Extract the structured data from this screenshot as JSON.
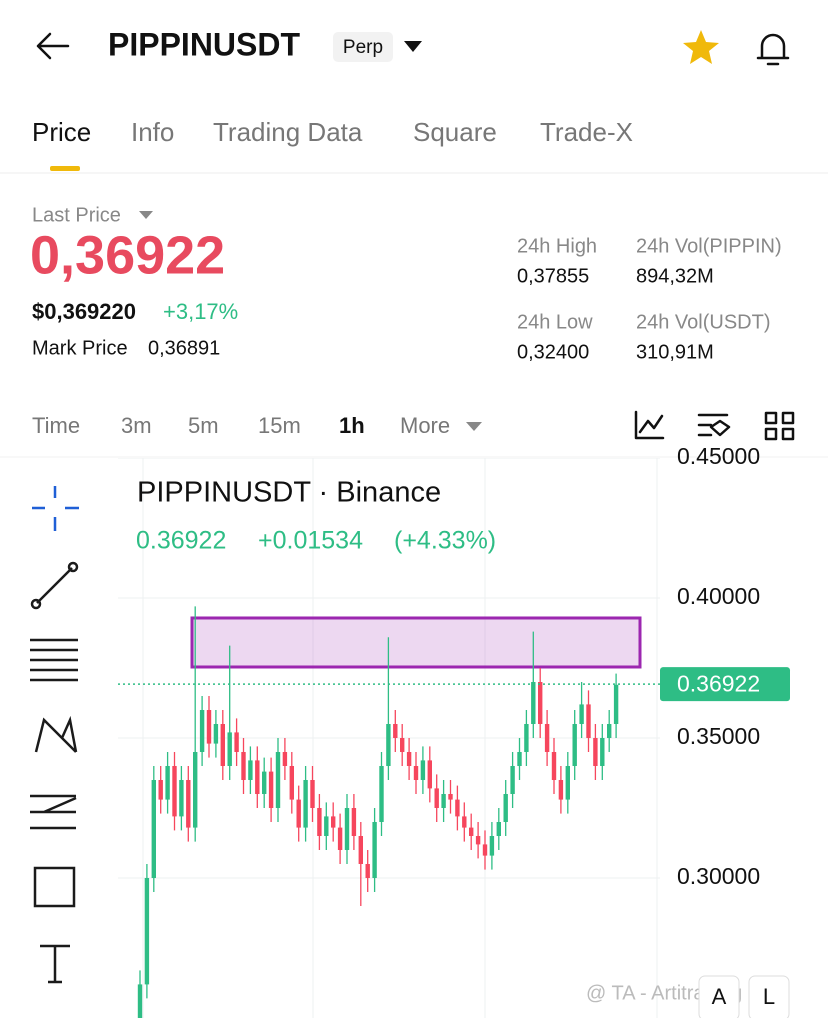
{
  "header": {
    "symbol": "PIPPINUSDT",
    "badge": "Perp"
  },
  "tabs": [
    "Price",
    "Info",
    "Trading Data",
    "Square",
    "Trade-X"
  ],
  "price": {
    "last_price_label": "Last Price",
    "last_price": "0,36922",
    "usd_price": "$0,369220",
    "change": "+3,17%",
    "mark_price_label": "Mark Price",
    "mark_price": "0,36891"
  },
  "stats": [
    {
      "label": "24h High",
      "value": "0,37855"
    },
    {
      "label": "24h Vol(PIPPIN)",
      "value": "894,32M"
    },
    {
      "label": "24h Low",
      "value": "0,32400"
    },
    {
      "label": "24h Vol(USDT)",
      "value": "310,91M"
    }
  ],
  "intervals": [
    "Time",
    "3m",
    "5m",
    "15m",
    "1h",
    "More"
  ],
  "chart_data": {
    "type": "candlestick",
    "title": "PIPPINUSDT · Binance",
    "quote": "0.36922",
    "change": "+0.01534",
    "change_pct": "(+4.33%)",
    "up_color": "#2ebd85",
    "down_color": "#f6465d",
    "zone_color": "#9c27b0",
    "open": [
      0.25,
      0.262,
      0.3,
      0.335,
      0.328,
      0.34,
      0.322,
      0.335,
      0.318,
      0.345,
      0.36,
      0.348,
      0.355,
      0.34,
      0.352,
      0.345,
      0.335,
      0.342,
      0.33,
      0.338,
      0.325,
      0.345,
      0.34,
      0.328,
      0.318,
      0.335,
      0.325,
      0.315,
      0.322,
      0.318,
      0.31,
      0.325,
      0.315,
      0.305,
      0.3,
      0.32,
      0.34,
      0.355,
      0.35,
      0.345,
      0.34,
      0.335,
      0.342,
      0.332,
      0.325,
      0.33,
      0.328,
      0.322,
      0.318,
      0.315,
      0.312,
      0.308,
      0.315,
      0.32,
      0.33,
      0.34,
      0.345,
      0.355,
      0.37,
      0.355,
      0.345,
      0.335,
      0.328,
      0.34,
      0.355,
      0.362,
      0.35,
      0.34,
      0.35,
      0.355
    ],
    "high": [
      0.267,
      0.305,
      0.34,
      0.34,
      0.345,
      0.345,
      0.34,
      0.34,
      0.397,
      0.365,
      0.365,
      0.36,
      0.36,
      0.383,
      0.357,
      0.35,
      0.347,
      0.347,
      0.343,
      0.343,
      0.35,
      0.35,
      0.345,
      0.333,
      0.34,
      0.34,
      0.33,
      0.327,
      0.327,
      0.323,
      0.33,
      0.33,
      0.32,
      0.31,
      0.325,
      0.345,
      0.386,
      0.36,
      0.355,
      0.35,
      0.345,
      0.347,
      0.347,
      0.337,
      0.335,
      0.335,
      0.333,
      0.327,
      0.323,
      0.32,
      0.317,
      0.32,
      0.325,
      0.335,
      0.345,
      0.35,
      0.36,
      0.388,
      0.375,
      0.36,
      0.35,
      0.34,
      0.345,
      0.36,
      0.37,
      0.367,
      0.355,
      0.355,
      0.36,
      0.373
    ],
    "low": [
      0.245,
      0.257,
      0.295,
      0.323,
      0.323,
      0.317,
      0.317,
      0.313,
      0.313,
      0.34,
      0.343,
      0.343,
      0.335,
      0.335,
      0.34,
      0.33,
      0.33,
      0.325,
      0.325,
      0.32,
      0.32,
      0.335,
      0.323,
      0.313,
      0.313,
      0.32,
      0.31,
      0.31,
      0.313,
      0.305,
      0.305,
      0.31,
      0.29,
      0.295,
      0.295,
      0.315,
      0.335,
      0.345,
      0.34,
      0.335,
      0.33,
      0.33,
      0.327,
      0.32,
      0.32,
      0.323,
      0.317,
      0.313,
      0.31,
      0.307,
      0.303,
      0.303,
      0.31,
      0.315,
      0.325,
      0.335,
      0.34,
      0.35,
      0.35,
      0.34,
      0.33,
      0.323,
      0.323,
      0.335,
      0.35,
      0.345,
      0.335,
      0.335,
      0.345,
      0.35
    ],
    "close": [
      0.262,
      0.3,
      0.335,
      0.328,
      0.34,
      0.322,
      0.335,
      0.318,
      0.345,
      0.36,
      0.348,
      0.355,
      0.34,
      0.352,
      0.345,
      0.335,
      0.342,
      0.33,
      0.338,
      0.325,
      0.345,
      0.34,
      0.328,
      0.318,
      0.335,
      0.325,
      0.315,
      0.322,
      0.318,
      0.31,
      0.325,
      0.315,
      0.305,
      0.3,
      0.32,
      0.34,
      0.355,
      0.35,
      0.345,
      0.34,
      0.335,
      0.342,
      0.332,
      0.325,
      0.33,
      0.328,
      0.322,
      0.318,
      0.315,
      0.312,
      0.308,
      0.315,
      0.32,
      0.33,
      0.34,
      0.345,
      0.355,
      0.37,
      0.355,
      0.345,
      0.335,
      0.328,
      0.34,
      0.355,
      0.362,
      0.35,
      0.34,
      0.35,
      0.355,
      0.369
    ],
    "ylim": [
      0.25,
      0.45
    ],
    "yticks": [
      {
        "value": 0.45,
        "label": "0.45000"
      },
      {
        "value": 0.4,
        "label": "0.40000"
      },
      {
        "value": 0.35,
        "label": "0.35000"
      },
      {
        "value": 0.3,
        "label": "0.30000"
      }
    ],
    "last_price": {
      "value": 0.36922,
      "label": "0.36922"
    },
    "zone": [
      0.37536,
      0.39286
    ]
  },
  "watermark": "@ TA - Artitrading",
  "corner_buttons": [
    "A",
    "L"
  ]
}
